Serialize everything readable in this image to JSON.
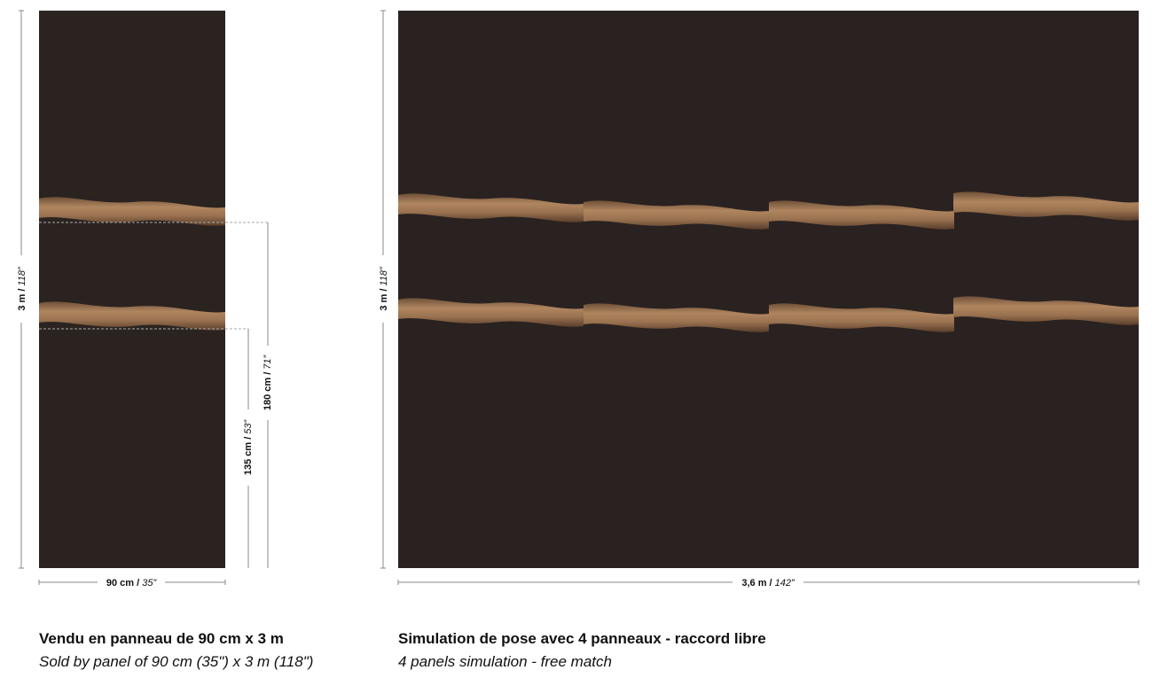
{
  "panel": {
    "height": {
      "main": "3 m /",
      "italic": "118”"
    },
    "width": {
      "main": "90 cm /",
      "italic": "35”"
    },
    "repeat_large": {
      "main": "180 cm /",
      "italic": "71”"
    },
    "repeat_small": {
      "main": "135 cm /",
      "italic": "53”"
    }
  },
  "simulation": {
    "height": {
      "main": "3 m /",
      "italic": "118”"
    },
    "width": {
      "main": "3,6 m /",
      "italic": "142”"
    }
  },
  "captions": {
    "panel": {
      "title": "Vendu en panneau de 90 cm x 3 m",
      "subtitle": "Sold by panel of 90 cm (35\") x 3 m (118\")"
    },
    "simulation": {
      "title": "Simulation de pose avec 4 panneaux - raccord libre",
      "subtitle": "4 panels simulation - free match"
    }
  }
}
